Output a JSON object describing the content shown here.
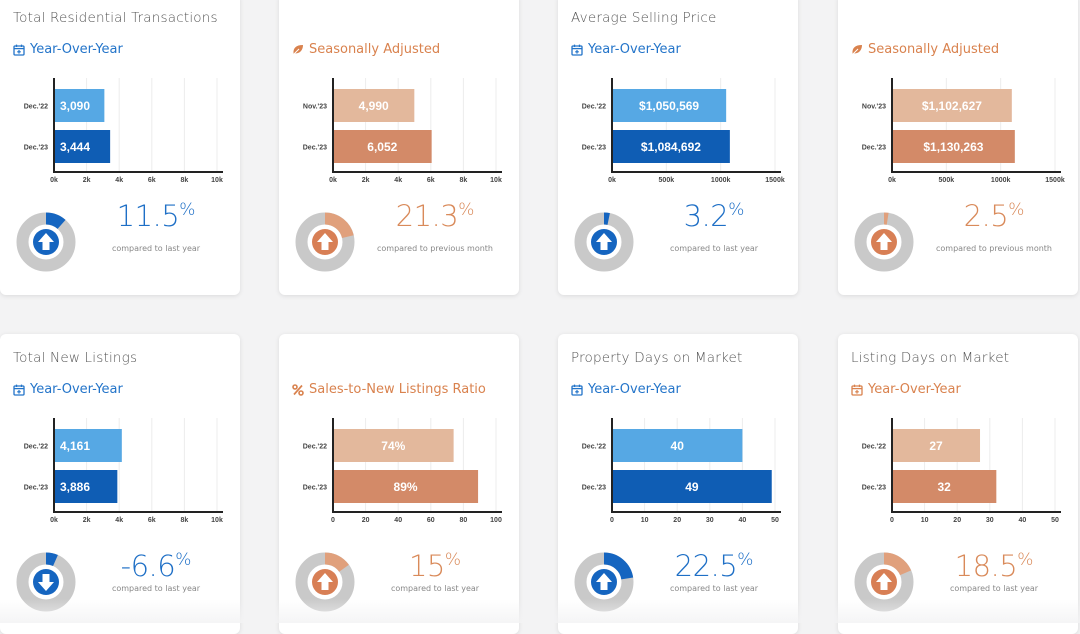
{
  "cards": [
    {
      "title": "Total Residential Transactions",
      "subtitle": "Year-Over-Year",
      "sub_icon": "calendar-icon",
      "theme": "blue",
      "chart_data": {
        "type": "bar",
        "orientation": "horizontal",
        "categories": [
          "Dec.'22",
          "Dec.'23"
        ],
        "values": [
          3090,
          3444
        ],
        "value_labels": [
          "3,090",
          "3,444"
        ],
        "xlim": [
          0,
          10000
        ],
        "xticks": [
          "0k",
          "2k",
          "4k",
          "6k",
          "8k",
          "10k"
        ]
      },
      "gauge_fraction": 0.115,
      "direction": "up",
      "change": "11.5",
      "change_suffix": "%",
      "compare_text": "compared to last year"
    },
    {
      "title": "",
      "subtitle": "Seasonally Adjusted",
      "sub_icon": "leaf-icon",
      "theme": "orange",
      "chart_data": {
        "type": "bar",
        "orientation": "horizontal",
        "categories": [
          "Nov.'23",
          "Dec.'23"
        ],
        "values": [
          4990,
          6052
        ],
        "value_labels": [
          "4,990",
          "6,052"
        ],
        "xlim": [
          0,
          10000
        ],
        "xticks": [
          "0k",
          "2k",
          "4k",
          "6k",
          "8k",
          "10k"
        ]
      },
      "gauge_fraction": 0.213,
      "direction": "up",
      "change": "21.3",
      "change_suffix": "%",
      "compare_text": "compared to previous month"
    },
    {
      "title": "Average Selling Price",
      "subtitle": "Year-Over-Year",
      "sub_icon": "calendar-icon",
      "theme": "blue",
      "chart_data": {
        "type": "bar",
        "orientation": "horizontal",
        "categories": [
          "Dec.'22",
          "Dec.'23"
        ],
        "values": [
          1050569,
          1084692
        ],
        "value_labels": [
          "$1,050,569",
          "$1,084,692"
        ],
        "xlim": [
          0,
          1500000
        ],
        "xticks": [
          "0k",
          "500k",
          "1000k",
          "1500k"
        ]
      },
      "gauge_fraction": 0.032,
      "direction": "up",
      "change": "3.2",
      "change_suffix": "%",
      "compare_text": "compared to last year"
    },
    {
      "title": "",
      "subtitle": "Seasonally Adjusted",
      "sub_icon": "leaf-icon",
      "theme": "orange",
      "chart_data": {
        "type": "bar",
        "orientation": "horizontal",
        "categories": [
          "Nov.'23",
          "Dec.'23"
        ],
        "values": [
          1102627,
          1130263
        ],
        "value_labels": [
          "$1,102,627",
          "$1,130,263"
        ],
        "xlim": [
          0,
          1500000
        ],
        "xticks": [
          "0k",
          "500k",
          "1000k",
          "1500k"
        ]
      },
      "gauge_fraction": 0.025,
      "direction": "up",
      "change": "2.5",
      "change_suffix": "%",
      "compare_text": "compared to previous month"
    },
    {
      "title": "Total New Listings",
      "subtitle": "Year-Over-Year",
      "sub_icon": "calendar-icon",
      "theme": "blue",
      "chart_data": {
        "type": "bar",
        "orientation": "horizontal",
        "categories": [
          "Dec.'22",
          "Dec.'23"
        ],
        "values": [
          4161,
          3886
        ],
        "value_labels": [
          "4,161",
          "3,886"
        ],
        "xlim": [
          0,
          10000
        ],
        "xticks": [
          "0k",
          "2k",
          "4k",
          "6k",
          "8k",
          "10k"
        ]
      },
      "gauge_fraction": 0.066,
      "direction": "down",
      "change": "-6.6",
      "change_suffix": "%",
      "compare_text": "compared to last year"
    },
    {
      "title": "",
      "subtitle": "Sales-to-New Listings Ratio",
      "sub_icon": "percent-icon",
      "theme": "orange",
      "chart_data": {
        "type": "bar",
        "orientation": "horizontal",
        "categories": [
          "Dec.'22",
          "Dec.'23"
        ],
        "values": [
          74,
          89
        ],
        "value_labels": [
          "74%",
          "89%"
        ],
        "xlim": [
          0,
          100
        ],
        "xticks": [
          "0",
          "20",
          "40",
          "60",
          "80",
          "100"
        ]
      },
      "gauge_fraction": 0.15,
      "direction": "up",
      "change": "15",
      "change_suffix": "%",
      "compare_text": "compared to last year"
    },
    {
      "title": "Property Days on Market",
      "subtitle": "Year-Over-Year",
      "sub_icon": "calendar-icon",
      "theme": "blue",
      "chart_data": {
        "type": "bar",
        "orientation": "horizontal",
        "categories": [
          "Dec.'22",
          "Dec.'23"
        ],
        "values": [
          40,
          49
        ],
        "value_labels": [
          "40",
          "49"
        ],
        "xlim": [
          0,
          50
        ],
        "xticks": [
          "0",
          "10",
          "20",
          "30",
          "40",
          "50"
        ]
      },
      "gauge_fraction": 0.225,
      "direction": "up",
      "change": "22.5",
      "change_suffix": "%",
      "compare_text": "compared to last year"
    },
    {
      "title": "Listing Days on Market",
      "subtitle": "Year-Over-Year",
      "sub_icon": "calendar-icon",
      "theme": "orange",
      "chart_data": {
        "type": "bar",
        "orientation": "horizontal",
        "categories": [
          "Dec.'22",
          "Dec.'23"
        ],
        "values": [
          27,
          32
        ],
        "value_labels": [
          "27",
          "32"
        ],
        "xlim": [
          0,
          50
        ],
        "xticks": [
          "0",
          "10",
          "20",
          "30",
          "40",
          "50"
        ]
      },
      "gauge_fraction": 0.185,
      "direction": "up",
      "change": "18.5",
      "change_suffix": "%",
      "compare_text": "compared to last year"
    }
  ],
  "colors": {
    "blue_light": "#56a8e4",
    "blue_dark": "#0f5db4",
    "orange_light": "#e3b89c",
    "orange_dark": "#d38a68",
    "blue_text": "#2374c9",
    "orange_text": "#d9824e",
    "gauge_track": "#c9c9c9"
  }
}
